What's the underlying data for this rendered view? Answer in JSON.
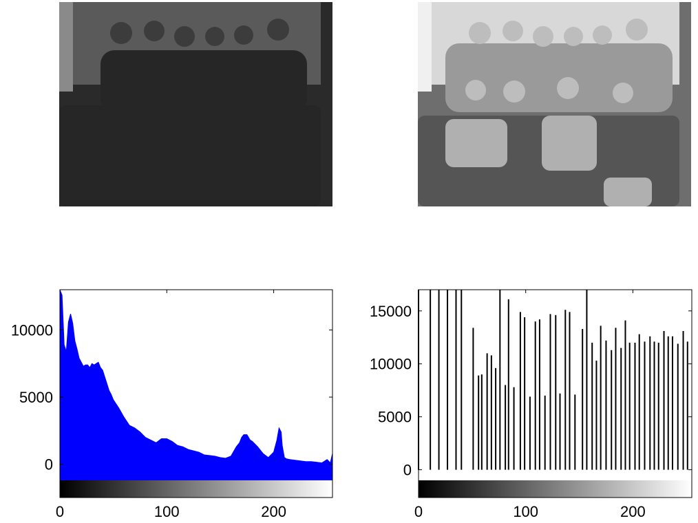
{
  "images": {
    "left": {
      "content": "grayscale group photo",
      "tone": "dark"
    },
    "right": {
      "content": "grayscale group photo",
      "tone": "histogram-equalized"
    }
  },
  "colors": {
    "histogram_fill": "#0000ff",
    "stem": "#000000",
    "axis": "#000000"
  },
  "chart_data": [
    {
      "type": "area",
      "title": "",
      "xlabel": "",
      "ylabel": "",
      "xlim": [
        0,
        255
      ],
      "ylim": [
        -1200,
        13000
      ],
      "x_ticks": [
        0,
        100,
        200
      ],
      "y_ticks": [
        0,
        5000,
        10000
      ],
      "x_tick_labels": [
        "0",
        "100",
        "200"
      ],
      "y_tick_labels": [
        "0",
        "5000",
        "10000"
      ],
      "grid": false,
      "colorbar": "grayscale gradient 0-255 under x-axis",
      "series": [
        {
          "x": [
            0,
            2,
            4,
            6,
            8,
            10,
            12,
            14,
            16,
            18,
            20,
            22,
            24,
            26,
            28,
            30,
            32,
            34,
            36,
            38,
            40,
            42,
            44,
            46,
            48,
            50,
            55,
            60,
            65,
            70,
            75,
            80,
            85,
            90,
            95,
            100,
            105,
            110,
            115,
            120,
            125,
            130,
            135,
            140,
            145,
            150,
            155,
            160,
            165,
            168,
            170,
            172,
            175,
            178,
            180,
            185,
            190,
            195,
            200,
            203,
            205,
            207,
            208,
            210,
            212,
            215,
            220,
            225,
            230,
            235,
            240,
            245,
            250,
            253,
            255
          ],
          "values": [
            13000,
            12600,
            8900,
            8400,
            10600,
            11200,
            10500,
            9200,
            8600,
            7900,
            7600,
            7300,
            7400,
            7400,
            7200,
            7500,
            7400,
            7500,
            7600,
            7200,
            7000,
            6500,
            6000,
            5500,
            5200,
            4800,
            4200,
            3500,
            2900,
            2700,
            2400,
            2000,
            1800,
            1600,
            1900,
            1900,
            1700,
            1400,
            1300,
            1100,
            1000,
            900,
            700,
            650,
            600,
            500,
            450,
            600,
            1300,
            1600,
            2000,
            2200,
            2200,
            1800,
            1700,
            1300,
            800,
            500,
            900,
            1800,
            2700,
            2400,
            1400,
            500,
            400,
            350,
            300,
            250,
            200,
            200,
            150,
            100,
            350,
            100,
            800
          ]
        }
      ]
    },
    {
      "type": "bar",
      "title": "",
      "xlabel": "",
      "ylabel": "",
      "xlim": [
        0,
        255
      ],
      "ylim": [
        -1000,
        17000
      ],
      "x_ticks": [
        0,
        100,
        200
      ],
      "y_ticks": [
        0,
        5000,
        10000,
        15000
      ],
      "x_tick_labels": [
        "0",
        "100",
        "200"
      ],
      "y_tick_labels": [
        "0",
        "5000",
        "10000",
        "15000"
      ],
      "grid": false,
      "colorbar": "grayscale gradient 0-255 under x-axis",
      "series": [
        {
          "x": [
            0,
            11,
            19,
            27,
            35,
            40,
            51,
            56,
            59,
            64,
            68,
            72,
            76,
            81,
            84,
            89,
            95,
            99,
            104,
            109,
            113,
            118,
            123,
            128,
            132,
            137,
            141,
            146,
            153,
            157,
            162,
            166,
            170,
            175,
            180,
            184,
            189,
            193,
            197,
            202,
            206,
            211,
            216,
            220,
            224,
            229,
            233,
            237,
            242,
            247,
            251
          ],
          "values": [
            17000,
            17000,
            17000,
            17000,
            17000,
            17000,
            13400,
            8900,
            9000,
            11000,
            10800,
            9600,
            17000,
            8000,
            16100,
            7800,
            14900,
            14400,
            6900,
            14000,
            14200,
            7000,
            14700,
            14600,
            7200,
            15100,
            14900,
            7100,
            13300,
            17000,
            12000,
            10300,
            13600,
            12200,
            11300,
            13400,
            11500,
            14100,
            12000,
            12000,
            12800,
            12100,
            12600,
            12100,
            12000,
            13100,
            12600,
            12600,
            11900,
            13100,
            12100
          ]
        }
      ]
    }
  ]
}
